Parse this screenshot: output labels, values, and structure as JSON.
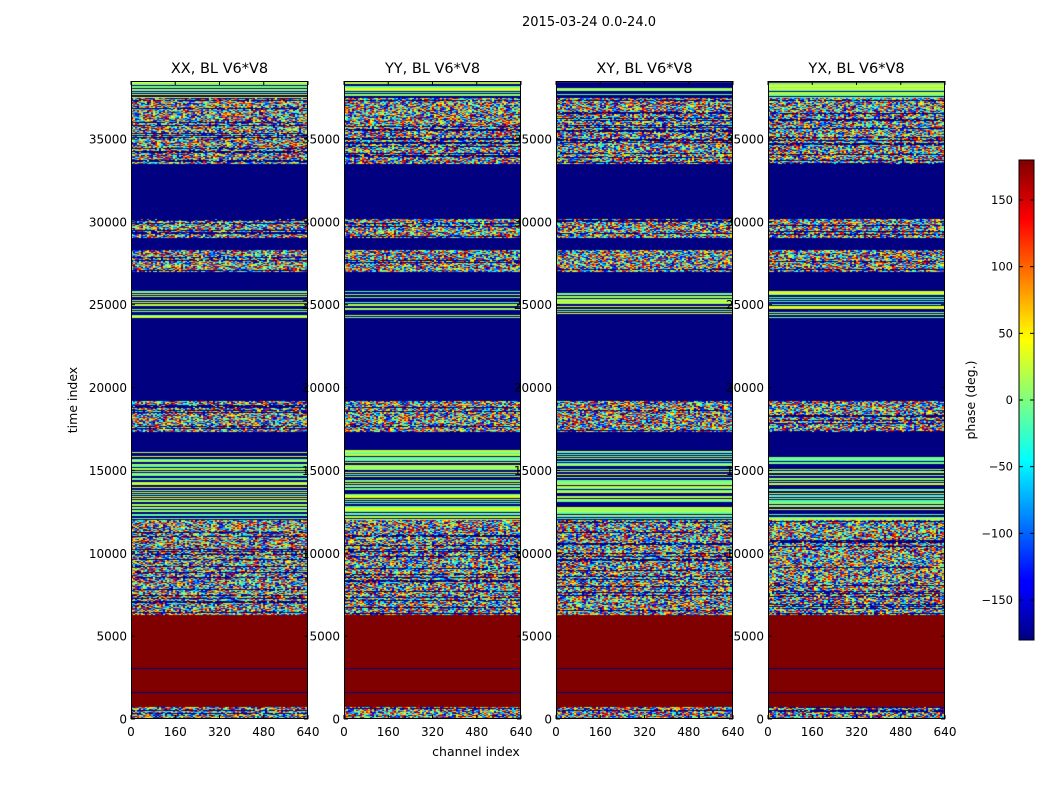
{
  "figure": {
    "suptitle": "2015-03-24 0.0-24.0",
    "xlabel": "channel index",
    "ylabel": "time index"
  },
  "chart_data": {
    "type": "heatmap",
    "title": "2015-03-24 0.0-24.0",
    "xlabel": "channel index",
    "ylabel": "time index",
    "xlim": [
      0,
      640
    ],
    "ylim": [
      0,
      38500
    ],
    "xticks": [
      0,
      160,
      320,
      480,
      640
    ],
    "yticks": [
      0,
      5000,
      10000,
      15000,
      20000,
      25000,
      30000,
      35000
    ],
    "colorbar": {
      "label": "phase (deg.)",
      "range": [
        -180,
        180
      ],
      "ticks": [
        -150,
        -100,
        -50,
        0,
        50,
        100,
        150
      ],
      "tick_labels": [
        "−150",
        "−100",
        "−50",
        "0",
        "50",
        "100",
        "150"
      ],
      "colormap": "jet"
    },
    "panels": [
      {
        "title": "XX, BL V6*V8",
        "pol": "XX",
        "baseline": "V6*V8"
      },
      {
        "title": "YY, BL V6*V8",
        "pol": "YY",
        "baseline": "V6*V8"
      },
      {
        "title": "XY, BL V6*V8",
        "pol": "XY",
        "baseline": "V6*V8"
      },
      {
        "title": "YX, BL V6*V8",
        "pol": "YX",
        "baseline": "V6*V8"
      }
    ],
    "bands": [
      {
        "t0": 0,
        "t1": 700,
        "kind": "noise"
      },
      {
        "t0": 700,
        "t1": 6300,
        "kind": "flat",
        "phase": 180
      },
      {
        "t0": 6300,
        "t1": 12000,
        "kind": "noise"
      },
      {
        "t0": 12000,
        "t1": 16300,
        "kind": "stripes"
      },
      {
        "t0": 16300,
        "t1": 17300,
        "kind": "flat",
        "phase": -180
      },
      {
        "t0": 17300,
        "t1": 19200,
        "kind": "noise"
      },
      {
        "t0": 19200,
        "t1": 24200,
        "kind": "flat",
        "phase": -180
      },
      {
        "t0": 24200,
        "t1": 25800,
        "kind": "stripes"
      },
      {
        "t0": 25800,
        "t1": 27000,
        "kind": "flat",
        "phase": -180
      },
      {
        "t0": 27000,
        "t1": 28300,
        "kind": "noise"
      },
      {
        "t0": 28300,
        "t1": 29000,
        "kind": "flat",
        "phase": -180
      },
      {
        "t0": 29000,
        "t1": 30200,
        "kind": "noise"
      },
      {
        "t0": 30200,
        "t1": 33500,
        "kind": "flat",
        "phase": -180
      },
      {
        "t0": 33500,
        "t1": 37500,
        "kind": "noise"
      },
      {
        "t0": 37500,
        "t1": 38500,
        "kind": "stripes"
      }
    ]
  }
}
